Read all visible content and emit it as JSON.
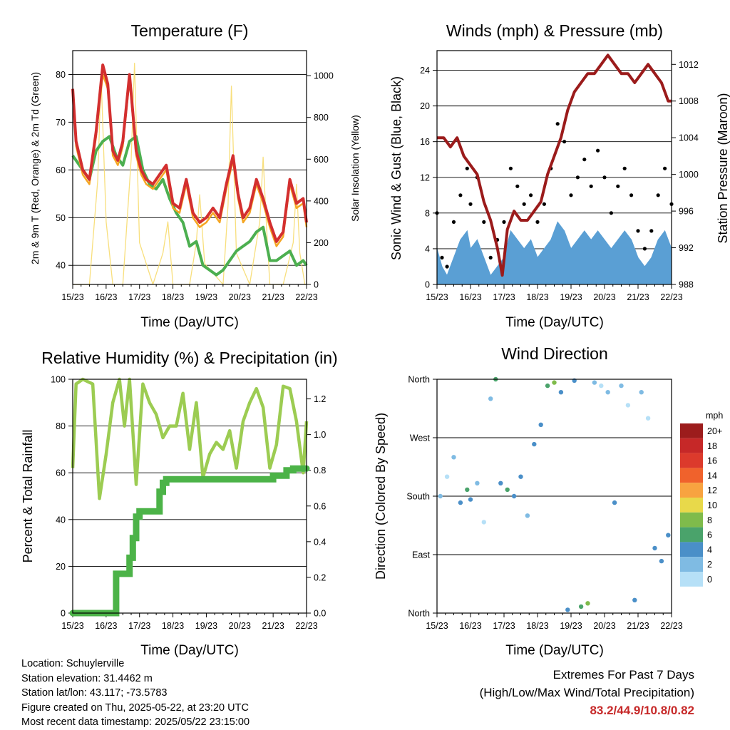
{
  "x_ticks": [
    "15/23",
    "16/23",
    "17/23",
    "18/23",
    "19/23",
    "20/23",
    "21/23",
    "22/23"
  ],
  "chart_data": [
    {
      "type": "line",
      "title": "Temperature (F)",
      "xlabel": "Time (Day/UTC)",
      "ylabel": "2m & 9m T (Red, Orange) & 2m Td (Green)",
      "ylabel_right": "Solar Insolation (Yellow)",
      "x_range_days": [
        0,
        7
      ],
      "ylim": [
        36,
        85
      ],
      "ylim_right": [
        0,
        1120
      ],
      "yticks": [
        40,
        50,
        60,
        70,
        80
      ],
      "yticks_right": [
        0,
        200,
        400,
        600,
        800,
        1000
      ],
      "series": [
        {
          "color": "#d32f2f",
          "x": [
            0,
            0.1,
            0.3,
            0.5,
            0.7,
            0.9,
            1.05,
            1.2,
            1.35,
            1.5,
            1.7,
            1.9,
            2.05,
            2.2,
            2.4,
            2.6,
            2.8,
            3.0,
            3.2,
            3.4,
            3.6,
            3.8,
            4.0,
            4.2,
            4.4,
            4.6,
            4.8,
            4.95,
            5.1,
            5.3,
            5.5,
            5.7,
            5.9,
            6.1,
            6.3,
            6.5,
            6.7,
            6.9,
            7.0
          ],
          "values": [
            77,
            66,
            60,
            58,
            68,
            82,
            78,
            64,
            62,
            66,
            80,
            64,
            60,
            58,
            57,
            59,
            61,
            53,
            52,
            58,
            51,
            49,
            50,
            52,
            50,
            57,
            63,
            55,
            50,
            52,
            58,
            54,
            49,
            45,
            47,
            58,
            53,
            54,
            49
          ]
        },
        {
          "color": "#f5a623",
          "x": [
            0,
            0.1,
            0.3,
            0.5,
            0.7,
            0.9,
            1.05,
            1.2,
            1.35,
            1.5,
            1.7,
            1.9,
            2.05,
            2.2,
            2.4,
            2.6,
            2.8,
            3.0,
            3.2,
            3.4,
            3.6,
            3.8,
            4.0,
            4.2,
            4.4,
            4.6,
            4.8,
            4.95,
            5.1,
            5.3,
            5.5,
            5.7,
            5.9,
            6.1,
            6.3,
            6.5,
            6.7,
            6.9,
            7.0
          ],
          "values": [
            76,
            65,
            59,
            57,
            67,
            80,
            77,
            63,
            61,
            65,
            79,
            63,
            59,
            57,
            56,
            58,
            60,
            52,
            51,
            57,
            50,
            48,
            49,
            51,
            49,
            56,
            62,
            54,
            49,
            51,
            57,
            53,
            48,
            44,
            46,
            57,
            52,
            53,
            48
          ]
        },
        {
          "color": "#4caf50",
          "x": [
            0,
            0.2,
            0.5,
            0.7,
            0.9,
            1.1,
            1.3,
            1.5,
            1.7,
            1.9,
            2.1,
            2.3,
            2.5,
            2.7,
            2.9,
            3.1,
            3.3,
            3.5,
            3.7,
            3.9,
            4.1,
            4.3,
            4.5,
            4.7,
            4.9,
            5.1,
            5.3,
            5.5,
            5.7,
            5.9,
            6.1,
            6.3,
            6.5,
            6.7,
            6.9,
            7.0
          ],
          "values": [
            63,
            61,
            58,
            64,
            66,
            67,
            63,
            61,
            66,
            67,
            60,
            57,
            56,
            58,
            54,
            51,
            49,
            44,
            45,
            40,
            39,
            38,
            39,
            41,
            43,
            44,
            45,
            47,
            48,
            41,
            41,
            42,
            43,
            40,
            41,
            40
          ]
        },
        {
          "color": "#f7dc6f",
          "x": [
            0,
            0.5,
            0.75,
            0.85,
            1.0,
            1.2,
            1.5,
            1.75,
            1.85,
            2.0,
            2.4,
            2.7,
            2.85,
            3.0,
            3.5,
            3.7,
            3.8,
            3.95,
            4.5,
            4.65,
            4.75,
            4.9,
            5.3,
            5.6,
            5.7,
            5.8,
            5.9,
            6.3,
            6.6,
            6.7,
            6.8,
            6.95,
            7.0
          ],
          "values": [
            0,
            0,
            500,
            1000,
            300,
            0,
            0,
            600,
            1060,
            200,
            0,
            150,
            300,
            0,
            0,
            200,
            430,
            100,
            0,
            380,
            950,
            150,
            0,
            300,
            610,
            280,
            0,
            0,
            200,
            480,
            150,
            0,
            0
          ]
        }
      ]
    },
    {
      "type": "line",
      "title": "Winds (mph) & Pressure (mb)",
      "xlabel": "Time (Day/UTC)",
      "ylabel": "Sonic Wind & Gust (Blue, Black)",
      "ylabel_right": "Station Pressure (Maroon)",
      "x_range_days": [
        0,
        7
      ],
      "ylim": [
        0,
        26.2
      ],
      "ylim_right": [
        988,
        1013.5
      ],
      "yticks": [
        0,
        4,
        8,
        12,
        16,
        20,
        24
      ],
      "yticks_right": [
        988,
        992,
        996,
        1000,
        1004,
        1008,
        1012
      ],
      "series": [
        {
          "name": "Station Pressure",
          "color": "#9b1b1b",
          "x": [
            0,
            0.2,
            0.4,
            0.6,
            0.8,
            1.0,
            1.2,
            1.4,
            1.6,
            1.8,
            1.95,
            2.1,
            2.3,
            2.5,
            2.7,
            2.9,
            3.1,
            3.3,
            3.5,
            3.7,
            3.9,
            4.1,
            4.3,
            4.5,
            4.7,
            4.9,
            5.1,
            5.3,
            5.5,
            5.7,
            5.9,
            6.1,
            6.3,
            6.5,
            6.7,
            6.9,
            7.0
          ],
          "values": [
            1004,
            1004,
            1003,
            1004,
            1002,
            1001,
            1000,
            997,
            995,
            992,
            989,
            994,
            996,
            995,
            995,
            996,
            997,
            1000,
            1002,
            1004,
            1007,
            1009,
            1010,
            1011,
            1011,
            1012,
            1013,
            1012,
            1011,
            1011,
            1010,
            1011,
            1012,
            1011,
            1010,
            1008,
            1008
          ]
        },
        {
          "name": "Sonic Wind",
          "color": "#5a9fd4",
          "x": [
            0,
            0.15,
            0.3,
            0.5,
            0.7,
            0.9,
            1.0,
            1.2,
            1.4,
            1.6,
            1.8,
            2.0,
            2.2,
            2.4,
            2.6,
            2.8,
            3.0,
            3.2,
            3.4,
            3.6,
            3.8,
            4.0,
            4.2,
            4.4,
            4.6,
            4.8,
            5.0,
            5.2,
            5.4,
            5.6,
            5.8,
            6.0,
            6.2,
            6.4,
            6.6,
            6.8,
            7.0
          ],
          "values": [
            4,
            2,
            1,
            3,
            5,
            6,
            4,
            5,
            3,
            1,
            2,
            3,
            6,
            5,
            4,
            5,
            3,
            4,
            5,
            7,
            6,
            4,
            5,
            6,
            5,
            6,
            5,
            4,
            5,
            6,
            5,
            3,
            2,
            3,
            5,
            6,
            4
          ]
        },
        {
          "name": "Gust",
          "color": "#000000",
          "x": [
            0,
            0.15,
            0.3,
            0.5,
            0.7,
            0.9,
            1.0,
            1.2,
            1.4,
            1.6,
            1.8,
            2.0,
            2.2,
            2.4,
            2.6,
            2.8,
            3.0,
            3.2,
            3.4,
            3.6,
            3.8,
            4.0,
            4.2,
            4.4,
            4.6,
            4.8,
            5.0,
            5.2,
            5.4,
            5.6,
            5.8,
            6.0,
            6.2,
            6.4,
            6.6,
            6.8,
            7.0
          ],
          "values": [
            8,
            3,
            2,
            7,
            10,
            13,
            9,
            12,
            7,
            3,
            5,
            7,
            13,
            11,
            9,
            10,
            7,
            9,
            13,
            18,
            16,
            10,
            12,
            14,
            11,
            15,
            12,
            8,
            11,
            13,
            10,
            6,
            4,
            6,
            10,
            13,
            9
          ]
        }
      ]
    },
    {
      "type": "line",
      "title": "Relative Humidity (%) & Precipitation (in)",
      "xlabel": "Time (Day/UTC)",
      "ylabel": "Percent & Total Rainfall",
      "x_range_days": [
        0,
        7
      ],
      "ylim": [
        0,
        100
      ],
      "ylim_right": [
        0,
        1.31
      ],
      "yticks": [
        0,
        20,
        40,
        60,
        80,
        100
      ],
      "yticks_right": [
        0.0,
        0.2,
        0.4,
        0.6,
        0.8,
        1.0,
        1.2
      ],
      "series": [
        {
          "name": "Relative Humidity",
          "color": "#9ccc52",
          "x": [
            0,
            0.1,
            0.3,
            0.6,
            0.8,
            1.0,
            1.2,
            1.4,
            1.55,
            1.7,
            1.9,
            2.1,
            2.3,
            2.5,
            2.7,
            2.9,
            3.1,
            3.3,
            3.5,
            3.7,
            3.9,
            4.1,
            4.3,
            4.5,
            4.7,
            4.9,
            5.1,
            5.3,
            5.5,
            5.7,
            5.9,
            6.1,
            6.3,
            6.5,
            6.7,
            6.9,
            7.0
          ],
          "values": [
            62,
            98,
            100,
            98,
            49,
            68,
            90,
            100,
            80,
            100,
            55,
            98,
            90,
            85,
            75,
            80,
            80,
            94,
            70,
            90,
            58,
            68,
            73,
            70,
            78,
            62,
            82,
            90,
            96,
            88,
            62,
            72,
            97,
            96,
            82,
            60,
            82
          ]
        },
        {
          "name": "Total Precipitation",
          "color": "#4cb348",
          "axis": "right",
          "x": [
            0,
            1.0,
            1.3,
            1.5,
            1.7,
            1.8,
            1.9,
            2.0,
            2.4,
            2.6,
            2.7,
            2.8,
            3.0,
            3.5,
            4.0,
            5.0,
            6.0,
            6.4,
            6.6,
            7.0
          ],
          "values": [
            0.0,
            0.0,
            0.22,
            0.22,
            0.31,
            0.42,
            0.54,
            0.57,
            0.57,
            0.68,
            0.73,
            0.75,
            0.75,
            0.75,
            0.75,
            0.75,
            0.77,
            0.8,
            0.81,
            0.81
          ]
        }
      ]
    },
    {
      "type": "scatter",
      "title": "Wind Direction",
      "xlabel": "Time (Day/UTC)",
      "ylabel": "Direction (Colored By Speed)",
      "x_range_days": [
        0,
        7
      ],
      "yticks_labels": [
        "North",
        "East",
        "South",
        "West",
        "North"
      ],
      "ylim_deg": [
        0,
        360
      ],
      "colorbar": {
        "title": "mph",
        "labels": [
          "20+",
          "18",
          "16",
          "14",
          "12",
          "10",
          "8",
          "6",
          "4",
          "2",
          "0"
        ],
        "colors": [
          "#9c1c1c",
          "#c62828",
          "#dc3a2c",
          "#f0622c",
          "#f8a340",
          "#e8d94a",
          "#7fbb4b",
          "#4aa36b",
          "#4a8fc8",
          "#7fbbe3",
          "#b6e0f7"
        ]
      },
      "points": [
        {
          "x": 0.1,
          "deg": 180,
          "c": "#7fbbe3"
        },
        {
          "x": 0.3,
          "deg": 210,
          "c": "#b6e0f7"
        },
        {
          "x": 0.5,
          "deg": 240,
          "c": "#7fbbe3"
        },
        {
          "x": 0.7,
          "deg": 170,
          "c": "#4a8fc8"
        },
        {
          "x": 0.9,
          "deg": 190,
          "c": "#4aa36b"
        },
        {
          "x": 1.0,
          "deg": 175,
          "c": "#4a8fc8"
        },
        {
          "x": 1.2,
          "deg": 200,
          "c": "#7fbbe3"
        },
        {
          "x": 1.4,
          "deg": 140,
          "c": "#b6e0f7"
        },
        {
          "x": 1.6,
          "deg": 330,
          "c": "#7fbbe3"
        },
        {
          "x": 1.75,
          "deg": 360,
          "c": "#4aa36b"
        },
        {
          "x": 1.9,
          "deg": 200,
          "c": "#4a8fc8"
        },
        {
          "x": 2.1,
          "deg": 190,
          "c": "#4aa36b"
        },
        {
          "x": 2.3,
          "deg": 180,
          "c": "#4a8fc8"
        },
        {
          "x": 2.5,
          "deg": 210,
          "c": "#4a8fc8"
        },
        {
          "x": 2.7,
          "deg": 150,
          "c": "#7fbbe3"
        },
        {
          "x": 2.9,
          "deg": 260,
          "c": "#4a8fc8"
        },
        {
          "x": 3.1,
          "deg": 290,
          "c": "#4a8fc8"
        },
        {
          "x": 3.3,
          "deg": 350,
          "c": "#4aa36b"
        },
        {
          "x": 3.5,
          "deg": 355,
          "c": "#7fbb4b"
        },
        {
          "x": 3.7,
          "deg": 340,
          "c": "#4a8fc8"
        },
        {
          "x": 3.9,
          "deg": 5,
          "c": "#4a8fc8"
        },
        {
          "x": 4.1,
          "deg": 358,
          "c": "#4a8fc8"
        },
        {
          "x": 4.3,
          "deg": 10,
          "c": "#4aa36b"
        },
        {
          "x": 4.5,
          "deg": 15,
          "c": "#7fbb4b"
        },
        {
          "x": 4.7,
          "deg": 355,
          "c": "#7fbbe3"
        },
        {
          "x": 4.9,
          "deg": 350,
          "c": "#b6e0f7"
        },
        {
          "x": 5.1,
          "deg": 340,
          "c": "#7fbbe3"
        },
        {
          "x": 5.3,
          "deg": 170,
          "c": "#4a8fc8"
        },
        {
          "x": 5.5,
          "deg": 350,
          "c": "#7fbbe3"
        },
        {
          "x": 5.7,
          "deg": 320,
          "c": "#b6e0f7"
        },
        {
          "x": 5.9,
          "deg": 20,
          "c": "#4a8fc8"
        },
        {
          "x": 6.1,
          "deg": 340,
          "c": "#7fbbe3"
        },
        {
          "x": 6.3,
          "deg": 300,
          "c": "#b6e0f7"
        },
        {
          "x": 6.5,
          "deg": 100,
          "c": "#4a8fc8"
        },
        {
          "x": 6.7,
          "deg": 80,
          "c": "#4a8fc8"
        },
        {
          "x": 6.9,
          "deg": 120,
          "c": "#4a8fc8"
        }
      ]
    }
  ],
  "info": {
    "location": "Location: Schuylerville",
    "elevation": "Station elevation: 31.4462 m",
    "latlon": "Station lat/lon: 43.117; -73.5783",
    "created": "Figure created on Thu, 2025-05-22, at 23:20 UTC",
    "recent": "Most recent data timestamp: 2025/05/22 23:15:00"
  },
  "extremes": {
    "title": "Extremes For Past 7 Days",
    "subtitle": "(High/Low/Max Wind/Total Precipitation)",
    "values": "83.2/44.9/10.8/0.82"
  }
}
